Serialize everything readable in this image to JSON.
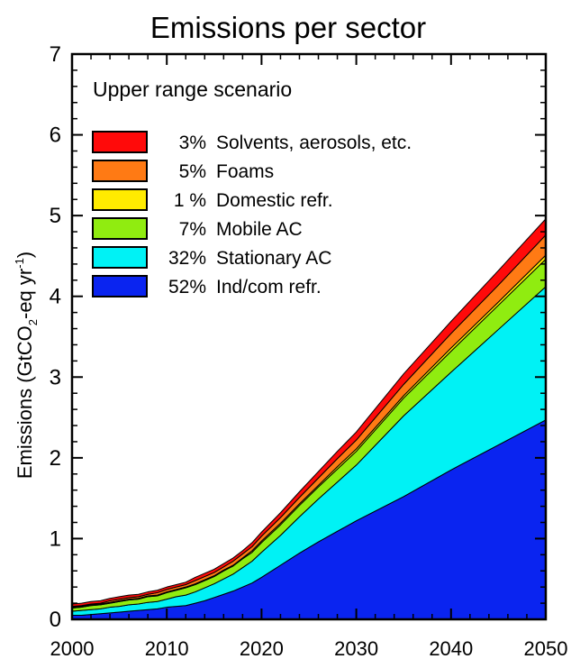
{
  "chart_data": {
    "type": "area",
    "stacked": true,
    "title": "Emissions per sector",
    "annotation": "Upper range scenario",
    "ylabel": {
      "main": "Emissions (GtCO",
      "sub": "2",
      "mid": "-eq yr",
      "sup": "-1",
      "end": ")"
    },
    "xlabel": "",
    "xlim": [
      2000,
      2050
    ],
    "ylim": [
      0,
      7
    ],
    "xticks": [
      2000,
      2010,
      2020,
      2030,
      2040,
      2050
    ],
    "yticks": [
      0,
      1,
      2,
      3,
      4,
      5,
      6,
      7
    ],
    "legend_position": "top-left",
    "x": [
      2000,
      2001,
      2002,
      2003,
      2004,
      2005,
      2006,
      2007,
      2008,
      2009,
      2010,
      2011,
      2012,
      2013,
      2014,
      2015,
      2016,
      2017,
      2018,
      2019,
      2020,
      2022,
      2024,
      2026,
      2028,
      2030,
      2035,
      2040,
      2045,
      2050
    ],
    "series": [
      {
        "name": "Ind/com refr.",
        "percent": "52%",
        "color": "#0a24f0",
        "values": [
          0.05,
          0.05,
          0.06,
          0.07,
          0.08,
          0.09,
          0.1,
          0.11,
          0.12,
          0.13,
          0.15,
          0.16,
          0.17,
          0.2,
          0.23,
          0.27,
          0.31,
          0.35,
          0.4,
          0.45,
          0.52,
          0.67,
          0.82,
          0.96,
          1.09,
          1.22,
          1.52,
          1.85,
          2.16,
          2.47
        ]
      },
      {
        "name": "Stationary AC",
        "percent": "32%",
        "color": "#00f2f5",
        "values": [
          0.05,
          0.06,
          0.06,
          0.06,
          0.07,
          0.07,
          0.08,
          0.08,
          0.09,
          0.09,
          0.1,
          0.12,
          0.13,
          0.14,
          0.16,
          0.17,
          0.19,
          0.21,
          0.24,
          0.27,
          0.31,
          0.37,
          0.45,
          0.53,
          0.61,
          0.69,
          1.0,
          1.21,
          1.43,
          1.65
        ]
      },
      {
        "name": "Mobile AC",
        "percent": "7%",
        "color": "#90ec10",
        "values": [
          0.04,
          0.04,
          0.05,
          0.05,
          0.05,
          0.06,
          0.06,
          0.06,
          0.07,
          0.07,
          0.08,
          0.08,
          0.09,
          0.09,
          0.09,
          0.09,
          0.1,
          0.1,
          0.11,
          0.11,
          0.12,
          0.13,
          0.14,
          0.15,
          0.16,
          0.17,
          0.22,
          0.26,
          0.3,
          0.34
        ]
      },
      {
        "name": "Domestic refr.",
        "percent": "1 %",
        "color": "#ffeb00",
        "values": [
          0.01,
          0.01,
          0.01,
          0.01,
          0.01,
          0.01,
          0.01,
          0.01,
          0.01,
          0.01,
          0.01,
          0.01,
          0.01,
          0.01,
          0.01,
          0.01,
          0.01,
          0.01,
          0.01,
          0.02,
          0.02,
          0.02,
          0.02,
          0.02,
          0.03,
          0.03,
          0.03,
          0.04,
          0.04,
          0.05
        ]
      },
      {
        "name": "Foams",
        "percent": "5%",
        "color": "#ff7a14",
        "values": [
          0.01,
          0.01,
          0.01,
          0.01,
          0.02,
          0.02,
          0.02,
          0.02,
          0.02,
          0.03,
          0.03,
          0.03,
          0.03,
          0.04,
          0.04,
          0.04,
          0.04,
          0.05,
          0.05,
          0.05,
          0.06,
          0.07,
          0.08,
          0.09,
          0.1,
          0.11,
          0.14,
          0.18,
          0.21,
          0.25
        ]
      },
      {
        "name": "Solvents, aerosols, etc.",
        "percent": "3%",
        "color": "#ff0a0a",
        "values": [
          0.03,
          0.03,
          0.03,
          0.03,
          0.03,
          0.03,
          0.03,
          0.03,
          0.03,
          0.03,
          0.03,
          0.03,
          0.03,
          0.04,
          0.04,
          0.04,
          0.04,
          0.04,
          0.04,
          0.05,
          0.05,
          0.06,
          0.07,
          0.08,
          0.09,
          0.1,
          0.13,
          0.15,
          0.18,
          0.2
        ]
      }
    ]
  }
}
